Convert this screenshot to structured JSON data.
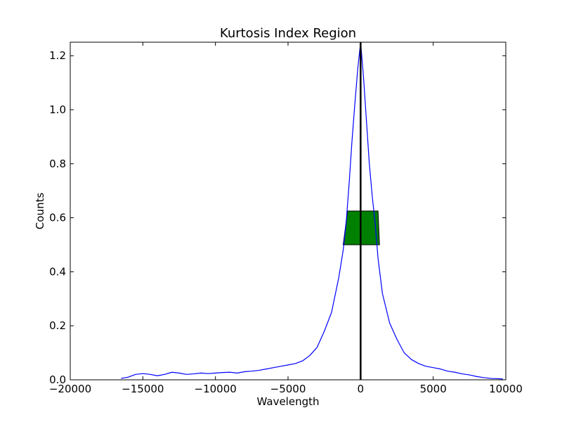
{
  "chart_data": {
    "type": "line",
    "title": "Kurtosis Index Region",
    "xlabel": "Wavelength",
    "ylabel": "Counts",
    "xlim": [
      -20000,
      10000
    ],
    "ylim": [
      0.0,
      1.25
    ],
    "grid": false,
    "xticks": [
      -20000,
      -15000,
      -10000,
      -5000,
      0,
      5000,
      10000
    ],
    "xtick_labels": [
      "−20000",
      "−15000",
      "−10000",
      "−5000",
      "0",
      "5000",
      "10000"
    ],
    "yticks": [
      0.0,
      0.2,
      0.4,
      0.6,
      0.8,
      1.0,
      1.2
    ],
    "ytick_labels": [
      "0.0",
      "0.2",
      "0.4",
      "0.6",
      "0.8",
      "1.0",
      "1.2"
    ],
    "series": [
      {
        "color": "#0000ff",
        "x": [
          -16500,
          -16000,
          -15500,
          -15000,
          -14500,
          -14000,
          -13500,
          -13000,
          -12500,
          -12000,
          -11500,
          -11000,
          -10500,
          -10000,
          -9500,
          -9000,
          -8500,
          -8000,
          -7500,
          -7000,
          -6500,
          -6000,
          -5500,
          -5000,
          -4500,
          -4000,
          -3500,
          -3000,
          -2500,
          -2000,
          -1500,
          -1200,
          -1000,
          -800,
          -600,
          -400,
          -200,
          0,
          200,
          400,
          600,
          800,
          1000,
          1200,
          1500,
          2000,
          2500,
          3000,
          3500,
          4000,
          4500,
          5000,
          5500,
          6000,
          6500,
          7000,
          7500,
          8000,
          8500,
          9000,
          9500,
          9800
        ],
        "y": [
          0.005,
          0.01,
          0.02,
          0.023,
          0.02,
          0.015,
          0.02,
          0.028,
          0.025,
          0.02,
          0.022,
          0.025,
          0.023,
          0.025,
          0.027,
          0.028,
          0.025,
          0.03,
          0.032,
          0.035,
          0.04,
          0.045,
          0.05,
          0.055,
          0.06,
          0.07,
          0.09,
          0.12,
          0.18,
          0.25,
          0.38,
          0.48,
          0.58,
          0.72,
          0.88,
          1.02,
          1.15,
          1.25,
          1.12,
          0.96,
          0.8,
          0.68,
          0.58,
          0.45,
          0.32,
          0.21,
          0.15,
          0.1,
          0.075,
          0.06,
          0.05,
          0.045,
          0.04,
          0.032,
          0.028,
          0.022,
          0.018,
          0.012,
          0.008,
          0.005,
          0.004,
          0.003
        ]
      }
    ],
    "vline": {
      "x": 0,
      "color": "#000000"
    },
    "region": {
      "x_left_bottom": -1200,
      "x_right_bottom": 1300,
      "x_left_top": -900,
      "x_right_top": 1200,
      "y_bottom": 0.5,
      "y_top": 0.625,
      "color": "#008000"
    }
  }
}
